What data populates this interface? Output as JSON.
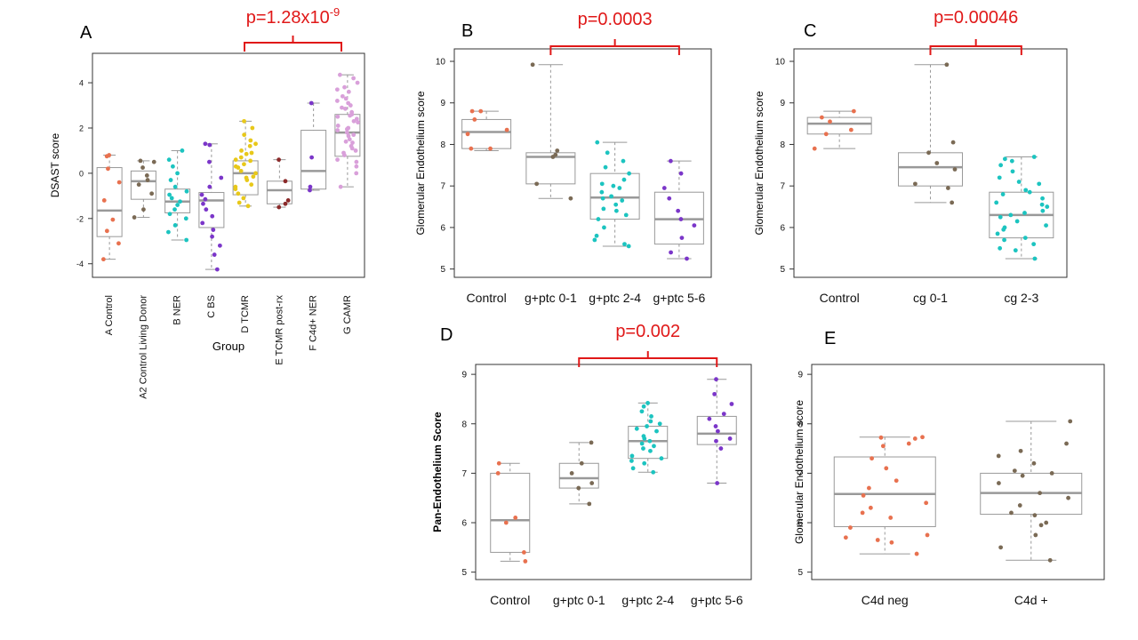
{
  "chart_data": [
    {
      "panel": "A",
      "type": "boxplot",
      "ylabel": "DSAST score",
      "xlabel": "Group",
      "yticks": [
        -4,
        -2,
        0,
        2,
        4
      ],
      "ylim": [
        -4.6,
        5.3
      ],
      "categories": [
        "A Control",
        "A2 Control Living Donor",
        "B NER",
        "C BS",
        "D TCMR",
        "E TCMR post-rx",
        "F C4d+ NER",
        "G CAMR"
      ],
      "colors": [
        "#E8714F",
        "#7A6A55",
        "#1CC4C0",
        "#7B36C9",
        "#E8C81A",
        "#8B2A2A",
        "#7B36C9",
        "#D9A0DA"
      ],
      "boxes": [
        {
          "q1": -2.8,
          "median": -1.65,
          "q3": 0.25,
          "low": -3.8,
          "high": 0.8
        },
        {
          "q1": -1.15,
          "median": -0.35,
          "q3": 0.1,
          "low": -1.95,
          "high": 0.55
        },
        {
          "q1": -1.75,
          "median": -1.25,
          "q3": -0.7,
          "low": -2.95,
          "high": 1.0
        },
        {
          "q1": -2.4,
          "median": -1.2,
          "q3": -0.85,
          "low": -4.25,
          "high": 1.3
        },
        {
          "q1": -0.95,
          "median": 0.0,
          "q3": 0.55,
          "low": -1.45,
          "high": 2.3
        },
        {
          "q1": -1.35,
          "median": -0.75,
          "q3": -0.35,
          "low": -1.5,
          "high": 0.6
        },
        {
          "q1": -0.7,
          "median": 0.1,
          "q3": 1.9,
          "low": -0.75,
          "high": 3.1
        },
        {
          "q1": 0.75,
          "median": 1.8,
          "q3": 2.6,
          "low": -0.6,
          "high": 4.35
        }
      ],
      "points": [
        [
          -3.8,
          -3.1,
          -2.55,
          -2.05,
          -1.2,
          -0.4,
          0.2,
          0.75,
          0.8
        ],
        [
          -1.95,
          -1.6,
          -0.9,
          -0.5,
          -0.3,
          -0.1,
          0.25,
          0.5,
          0.55
        ],
        [
          -2.95,
          -2.6,
          -2.3,
          -2.0,
          -1.8,
          -1.6,
          -1.4,
          -1.25,
          -1.1,
          -0.95,
          -0.8,
          -0.6,
          -0.3,
          0.0,
          0.3,
          0.6,
          1.0
        ],
        [
          -4.25,
          -3.6,
          -3.2,
          -2.8,
          -2.5,
          -2.2,
          -1.9,
          -1.6,
          -1.35,
          -1.15,
          -0.95,
          -0.6,
          -0.2,
          0.5,
          1.25,
          1.3
        ],
        [
          -1.45,
          -1.3,
          -1.1,
          -0.9,
          -0.7,
          -0.5,
          -0.3,
          -0.15,
          0.0,
          0.1,
          0.25,
          0.4,
          0.55,
          0.7,
          0.85,
          1.0,
          1.2,
          1.45,
          1.7,
          2.0,
          2.3,
          -0.2,
          0.3,
          0.6,
          -0.6,
          0.9,
          1.3
        ],
        [
          -1.5,
          -1.35,
          -1.2,
          -0.35,
          0.6
        ],
        [
          -0.75,
          -0.6,
          0.7,
          3.1
        ],
        [
          -0.6,
          0.0,
          0.3,
          0.6,
          0.8,
          1.0,
          1.2,
          1.35,
          1.5,
          1.65,
          1.8,
          1.95,
          2.1,
          2.25,
          2.4,
          2.55,
          2.7,
          2.85,
          3.0,
          3.2,
          3.4,
          3.6,
          3.8,
          4.0,
          4.2,
          4.35,
          0.5,
          1.1,
          1.7,
          2.0,
          2.3,
          2.6,
          2.9,
          3.3,
          0.9,
          1.4,
          1.9,
          2.5,
          3.1,
          3.7
        ]
      ],
      "annotation": {
        "base": "p=1.28x10",
        "exp": "-9",
        "from": 4,
        "to": 7
      }
    },
    {
      "panel": "B",
      "type": "boxplot",
      "ylabel": "Glomerular Endothelium score",
      "yticks": [
        5,
        6,
        7,
        8,
        9,
        10
      ],
      "ylim": [
        4.8,
        10.3
      ],
      "categories": [
        "Control",
        "g+ptc 0-1",
        "g+ptc 2-4",
        "g+ptc 5-6"
      ],
      "colors": [
        "#E8714F",
        "#7A6A55",
        "#1CC4C0",
        "#7B36C9"
      ],
      "boxes": [
        {
          "q1": 7.9,
          "median": 8.3,
          "q3": 8.6,
          "low": 7.85,
          "high": 8.8
        },
        {
          "q1": 7.05,
          "median": 7.7,
          "q3": 7.8,
          "low": 6.7,
          "high": 9.92
        },
        {
          "q1": 6.2,
          "median": 6.72,
          "q3": 7.3,
          "low": 5.55,
          "high": 8.05
        },
        {
          "q1": 5.6,
          "median": 6.2,
          "q3": 6.85,
          "low": 5.25,
          "high": 7.6
        }
      ],
      "points": [
        [
          7.9,
          7.9,
          8.25,
          8.35,
          8.6,
          8.8,
          8.8
        ],
        [
          6.7,
          7.05,
          7.7,
          7.75,
          7.85,
          9.92
        ],
        [
          5.55,
          5.6,
          5.8,
          6.0,
          6.2,
          6.3,
          6.45,
          6.55,
          6.65,
          6.7,
          6.75,
          6.85,
          6.95,
          7.05,
          7.15,
          7.3,
          7.45,
          7.6,
          7.8,
          8.05,
          6.4,
          7.0,
          5.7
        ],
        [
          5.25,
          5.4,
          5.75,
          6.05,
          6.2,
          6.4,
          6.7,
          6.95,
          7.3,
          7.6
        ]
      ],
      "annotation": {
        "base": "p=0.0003",
        "from": 1,
        "to": 3
      }
    },
    {
      "panel": "C",
      "type": "boxplot",
      "ylabel": "Glomerular Endothelium score",
      "yticks": [
        5,
        6,
        7,
        8,
        9,
        10
      ],
      "ylim": [
        4.8,
        10.3
      ],
      "categories": [
        "Control",
        "cg 0-1",
        "cg 2-3"
      ],
      "colors": [
        "#E8714F",
        "#7A6A55",
        "#1CC4C0"
      ],
      "boxes": [
        {
          "q1": 8.25,
          "median": 8.5,
          "q3": 8.65,
          "low": 7.9,
          "high": 8.8
        },
        {
          "q1": 7.0,
          "median": 7.45,
          "q3": 7.8,
          "low": 6.6,
          "high": 9.92
        },
        {
          "q1": 5.75,
          "median": 6.3,
          "q3": 6.85,
          "low": 5.25,
          "high": 7.7
        }
      ],
      "points": [
        [
          7.9,
          8.25,
          8.35,
          8.55,
          8.65,
          8.8
        ],
        [
          6.6,
          6.95,
          7.05,
          7.4,
          7.55,
          7.8,
          8.05,
          9.92
        ],
        [
          5.25,
          5.45,
          5.6,
          5.75,
          5.85,
          5.95,
          6.05,
          6.15,
          6.25,
          6.3,
          6.4,
          6.5,
          6.6,
          6.7,
          6.8,
          6.9,
          7.05,
          7.2,
          7.35,
          7.5,
          7.65,
          7.7,
          6.0,
          6.55,
          5.7,
          7.1,
          6.35,
          5.5,
          7.6,
          6.85
        ]
      ],
      "annotation": {
        "base": "p=0.00046",
        "from": 1,
        "to": 2
      }
    },
    {
      "panel": "D",
      "type": "boxplot",
      "ylabel": "Pan-Endothelium Score",
      "yticks": [
        5,
        6,
        7,
        8,
        9
      ],
      "ylim": [
        4.85,
        9.2
      ],
      "categories": [
        "Control",
        "g+ptc 0-1",
        "g+ptc 2-4",
        "g+ptc 5-6"
      ],
      "colors": [
        "#E8714F",
        "#7A6A55",
        "#1CC4C0",
        "#7B36C9"
      ],
      "boxes": [
        {
          "q1": 5.4,
          "median": 6.05,
          "q3": 7.0,
          "low": 5.22,
          "high": 7.2
        },
        {
          "q1": 6.7,
          "median": 6.9,
          "q3": 7.2,
          "low": 6.38,
          "high": 7.62
        },
        {
          "q1": 7.3,
          "median": 7.65,
          "q3": 7.95,
          "low": 7.02,
          "high": 8.42
        },
        {
          "q1": 7.58,
          "median": 7.8,
          "q3": 8.15,
          "low": 6.8,
          "high": 8.9
        }
      ],
      "points": [
        [
          5.22,
          5.4,
          6.0,
          6.1,
          7.0,
          7.2
        ],
        [
          6.38,
          6.7,
          6.8,
          7.0,
          7.2,
          7.62
        ],
        [
          7.02,
          7.1,
          7.2,
          7.3,
          7.35,
          7.45,
          7.55,
          7.6,
          7.65,
          7.7,
          7.75,
          7.85,
          7.95,
          8.05,
          8.15,
          8.25,
          8.35,
          8.42,
          7.5,
          7.9,
          8.0,
          7.25
        ],
        [
          6.8,
          7.5,
          7.7,
          7.85,
          7.95,
          8.1,
          8.2,
          8.4,
          8.6,
          8.9,
          7.65
        ]
      ],
      "annotation": {
        "base": "p=0.002",
        "from": 1,
        "to": 3
      }
    },
    {
      "panel": "E",
      "type": "boxplot",
      "ylabel": "Glomerular Endothelium score",
      "yticks": [
        5,
        6,
        7,
        8,
        9
      ],
      "ylim": [
        4.85,
        9.2
      ],
      "categories": [
        "C4d neg",
        "C4d +"
      ],
      "colors": [
        "#E8714F",
        "#7A6A55"
      ],
      "boxes": [
        {
          "q1": 5.92,
          "median": 6.58,
          "q3": 7.33,
          "low": 5.37,
          "high": 7.73
        },
        {
          "q1": 6.17,
          "median": 6.6,
          "q3": 7.0,
          "low": 5.24,
          "high": 8.05
        }
      ],
      "points": [
        [
          5.37,
          5.6,
          5.7,
          5.75,
          5.9,
          6.1,
          6.3,
          6.4,
          6.55,
          6.7,
          6.85,
          7.1,
          7.3,
          7.55,
          7.6,
          7.7,
          7.73,
          7.72,
          6.2,
          5.65
        ],
        [
          5.24,
          5.5,
          5.75,
          5.95,
          6.15,
          6.2,
          6.35,
          6.6,
          6.8,
          6.95,
          7.0,
          7.2,
          7.35,
          7.45,
          7.6,
          8.05,
          6.5,
          6.0,
          7.05
        ]
      ]
    }
  ],
  "panel_labels": [
    "A",
    "B",
    "C",
    "D",
    "E"
  ]
}
